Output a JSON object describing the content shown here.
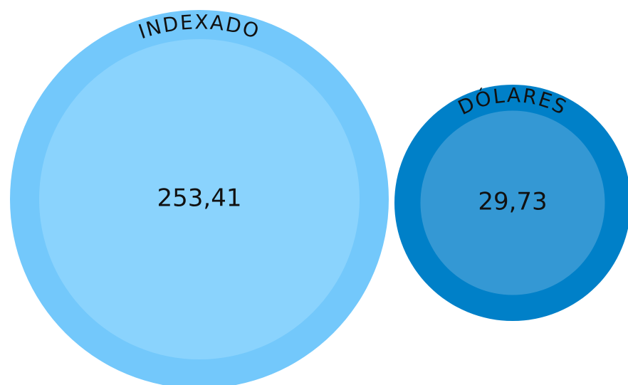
{
  "chart_data": {
    "type": "bubble",
    "categories": [
      "INDEXADO",
      "DÓLARES"
    ],
    "values": [
      253.41,
      29.73
    ],
    "value_labels": [
      "253,41",
      "29,73"
    ],
    "colors": [
      "#73c8fb",
      "#0080c8"
    ],
    "inner_colors": [
      "#8ad3fd",
      "#3498d4"
    ]
  }
}
